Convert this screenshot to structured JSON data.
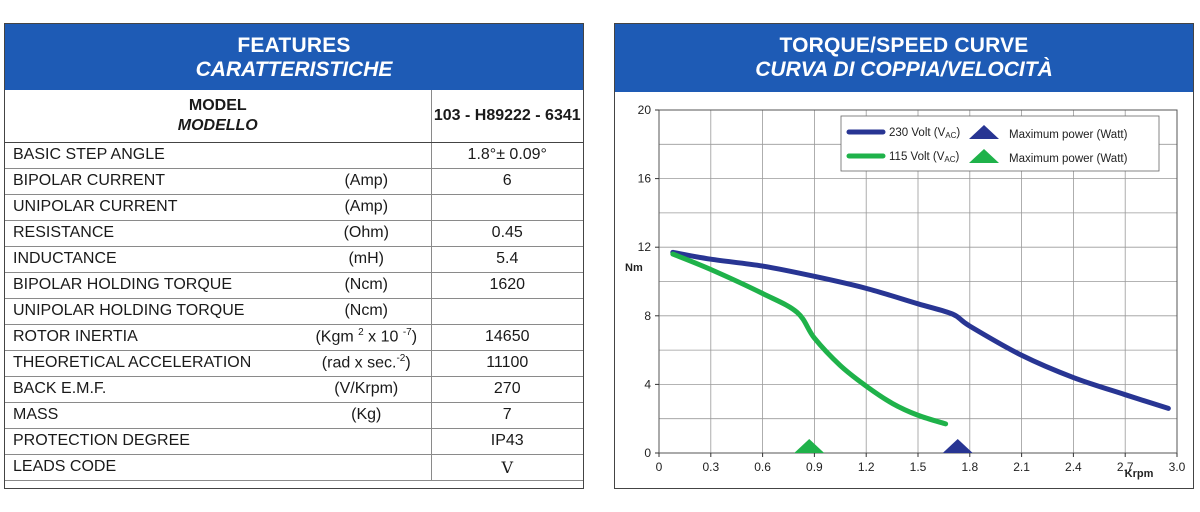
{
  "features": {
    "title": "FEATURES",
    "subtitle": "CARATTERISTICHE",
    "model_label_1": "MODEL",
    "model_label_2": "MODELLO",
    "model_value": "103 - H89222 - 6341",
    "rows": [
      {
        "label": "BASIC STEP ANGLE",
        "unit": "",
        "value": "1.8°± 0.09°"
      },
      {
        "label": "BIPOLAR CURRENT",
        "unit": "(Amp)",
        "value": "6"
      },
      {
        "label": "UNIPOLAR CURRENT",
        "unit": "(Amp)",
        "value": ""
      },
      {
        "label": "RESISTANCE",
        "unit": "(Ohm)",
        "value": "0.45"
      },
      {
        "label": "INDUCTANCE",
        "unit": "(mH)",
        "value": "5.4"
      },
      {
        "label": "BIPOLAR HOLDING TORQUE",
        "unit": "(Ncm)",
        "value": "1620"
      },
      {
        "label": "UNIPOLAR HOLDING TORQUE",
        "unit": "(Ncm)",
        "value": ""
      },
      {
        "label": "ROTOR INERTIA",
        "unit_html": "(Kgm <sup>2</sup> x 10 <sup>-7</sup>)",
        "unit": "(Kgm 2 x 10 -7)",
        "value": "14650"
      },
      {
        "label": "THEORETICAL ACCELERATION",
        "unit_html": "(rad x sec.<sup>-2</sup>)",
        "unit": "(rad x sec.-2)",
        "value": "11100"
      },
      {
        "label": "BACK E.M.F.",
        "unit": "(V/Krpm)",
        "value": "270"
      },
      {
        "label": "MASS",
        "unit": "(Kg)",
        "value": "7"
      },
      {
        "label": "PROTECTION DEGREE",
        "unit": "",
        "value": "IP43"
      },
      {
        "label": "LEADS CODE",
        "unit": "",
        "value": "V"
      }
    ]
  },
  "curve": {
    "title": "TORQUE/SPEED CURVE",
    "subtitle": "CURVA DI COPPIA/VELOCITÀ"
  },
  "chart_data": {
    "type": "line",
    "title": "TORQUE/SPEED CURVE",
    "subtitle": "CURVA DI COPPIA/VELOCITÀ",
    "xlabel": "Krpm",
    "ylabel": "Nm",
    "xlim": [
      0,
      3.0
    ],
    "ylim": [
      0,
      20
    ],
    "x_ticks": [
      "0",
      "0.3",
      "0.6",
      "0.9",
      "1.2",
      "1.5",
      "1.8",
      "2.1",
      "2.4",
      "2.7",
      "3.0"
    ],
    "y_ticks": [
      "0",
      "4",
      "8",
      "12",
      "16",
      "20"
    ],
    "grid": true,
    "legend_position": "top-right",
    "series": [
      {
        "name": "230 Volt (VAC)",
        "legend_main": "230 Volt (V",
        "legend_sub": "AC",
        "legend_tail": ")",
        "color": "#283593",
        "x": [
          0.08,
          0.3,
          0.6,
          0.9,
          1.2,
          1.5,
          1.7,
          1.8,
          2.1,
          2.4,
          2.7,
          2.95
        ],
        "y": [
          11.7,
          11.3,
          10.9,
          10.3,
          9.6,
          8.7,
          8.1,
          7.4,
          5.7,
          4.4,
          3.4,
          2.6
        ],
        "max_power_x": 1.73,
        "max_power_label": "Maximum power (Watt)"
      },
      {
        "name": "115 Volt (VAC)",
        "legend_main": "115 Volt (V",
        "legend_sub": "AC",
        "legend_tail": ")",
        "color": "#1fb24a",
        "x": [
          0.08,
          0.3,
          0.6,
          0.8,
          0.9,
          1.05,
          1.2,
          1.35,
          1.5,
          1.66
        ],
        "y": [
          11.6,
          10.7,
          9.3,
          8.2,
          6.7,
          5.1,
          3.9,
          2.9,
          2.2,
          1.7
        ],
        "max_power_x": 0.87,
        "max_power_label": "Maximum power (Watt)"
      }
    ]
  }
}
